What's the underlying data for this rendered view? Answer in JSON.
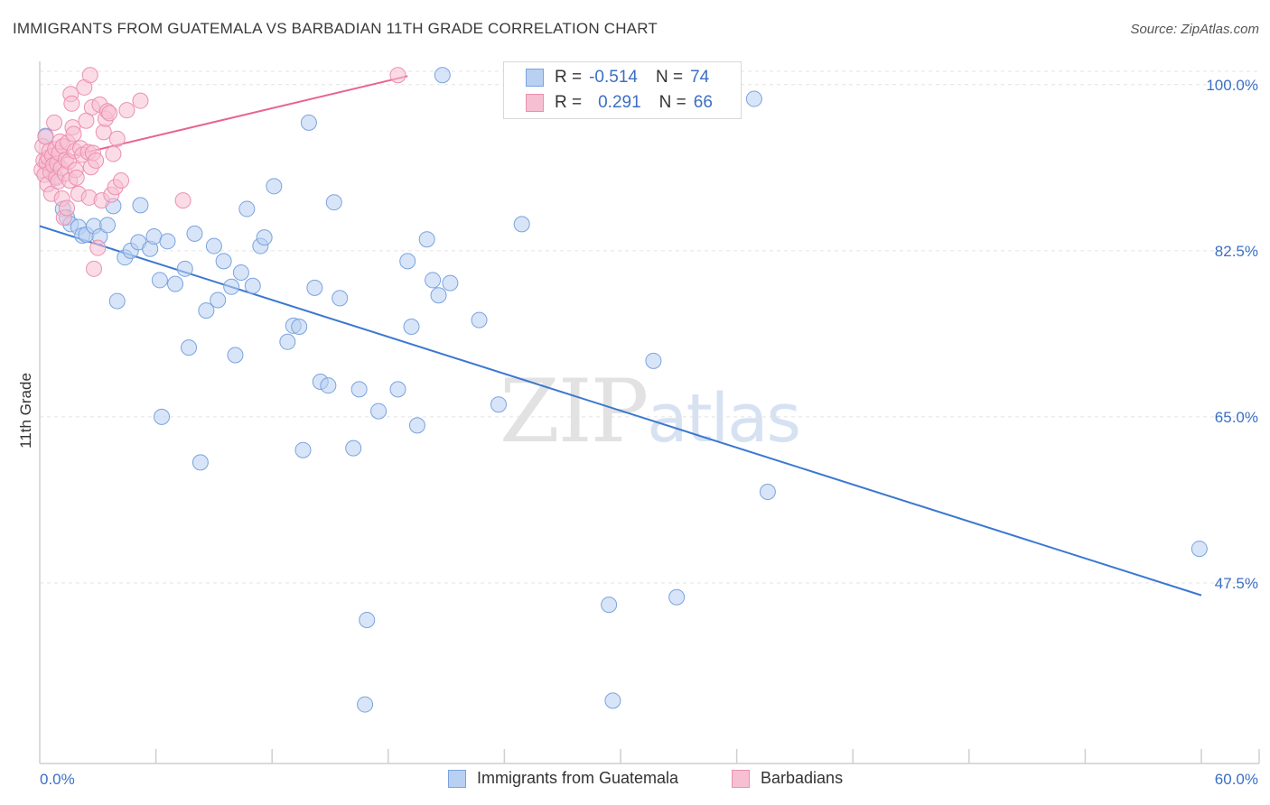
{
  "title": "IMMIGRANTS FROM GUATEMALA VS BARBADIAN 11TH GRADE CORRELATION CHART",
  "source": "Source: ZipAtlas.com",
  "watermark": {
    "zip": "ZIP",
    "atlas": "atlas"
  },
  "legend": {
    "series1": {
      "r_label": "R =",
      "r_value": "-0.514",
      "n_label": "N =",
      "n_value": "74"
    },
    "series2": {
      "r_label": "R =",
      "r_value": "0.291",
      "n_label": "N =",
      "n_value": "66"
    }
  },
  "colors": {
    "blue": "#3c78d0",
    "blue_fill": "#b8d0f2",
    "pink": "#e8638f",
    "pink_fill": "#f7bfd2",
    "axis_text": "#3b6fc4"
  },
  "chart_data": {
    "type": "scatter",
    "title": "IMMIGRANTS FROM GUATEMALA VS BARBADIAN 11TH GRADE CORRELATION CHART",
    "xlabel": "",
    "ylabel": "11th Grade",
    "xlim": [
      0,
      60
    ],
    "ylim": [
      30,
      101.5
    ],
    "x_tick_labels": [
      "0.0%",
      "60.0%"
    ],
    "y_ticks": [
      47.5,
      65.0,
      82.5,
      100.0
    ],
    "y_tick_labels": [
      "47.5%",
      "65.0%",
      "82.5%",
      "100.0%"
    ],
    "x_minor_ticks": [
      6,
      12,
      18,
      24,
      30,
      36,
      42,
      48,
      54,
      60
    ],
    "series": [
      {
        "name": "Immigrants from Guatemala",
        "r": -0.514,
        "n": 74,
        "trend": {
          "x": [
            0,
            60
          ],
          "y": [
            85.1,
            46.2
          ]
        },
        "points": [
          [
            0.3,
            94.6
          ],
          [
            0.5,
            91.5
          ],
          [
            0.8,
            90.3
          ],
          [
            1.2,
            86.9
          ],
          [
            1.4,
            86.0
          ],
          [
            1.6,
            85.3
          ],
          [
            2.0,
            85.0
          ],
          [
            2.2,
            84.1
          ],
          [
            2.4,
            84.2
          ],
          [
            2.8,
            85.1
          ],
          [
            3.1,
            84.0
          ],
          [
            3.5,
            85.2
          ],
          [
            3.8,
            87.2
          ],
          [
            4.0,
            77.2
          ],
          [
            4.4,
            81.8
          ],
          [
            4.7,
            82.5
          ],
          [
            5.1,
            83.4
          ],
          [
            5.2,
            87.3
          ],
          [
            5.7,
            82.7
          ],
          [
            5.9,
            84.0
          ],
          [
            6.2,
            79.4
          ],
          [
            6.3,
            65.0
          ],
          [
            6.6,
            83.5
          ],
          [
            7.0,
            79.0
          ],
          [
            7.5,
            80.6
          ],
          [
            7.7,
            72.3
          ],
          [
            8.0,
            84.3
          ],
          [
            8.3,
            60.2
          ],
          [
            8.6,
            76.2
          ],
          [
            9.0,
            83.0
          ],
          [
            9.2,
            77.3
          ],
          [
            9.5,
            81.4
          ],
          [
            9.9,
            78.7
          ],
          [
            10.1,
            71.5
          ],
          [
            10.4,
            80.2
          ],
          [
            10.7,
            86.9
          ],
          [
            11.0,
            78.8
          ],
          [
            11.4,
            83.0
          ],
          [
            11.6,
            83.9
          ],
          [
            12.1,
            89.3
          ],
          [
            12.8,
            72.9
          ],
          [
            13.1,
            74.6
          ],
          [
            13.4,
            74.5
          ],
          [
            13.6,
            61.5
          ],
          [
            13.9,
            96.0
          ],
          [
            14.2,
            78.6
          ],
          [
            14.5,
            68.7
          ],
          [
            14.9,
            68.3
          ],
          [
            15.2,
            87.6
          ],
          [
            15.5,
            77.5
          ],
          [
            16.2,
            61.7
          ],
          [
            16.5,
            67.9
          ],
          [
            16.8,
            34.7
          ],
          [
            16.9,
            43.6
          ],
          [
            17.5,
            65.6
          ],
          [
            18.5,
            67.9
          ],
          [
            19.0,
            81.4
          ],
          [
            19.2,
            74.5
          ],
          [
            19.5,
            64.1
          ],
          [
            20.0,
            83.7
          ],
          [
            20.3,
            79.4
          ],
          [
            20.6,
            77.8
          ],
          [
            20.8,
            101.0
          ],
          [
            21.2,
            79.1
          ],
          [
            22.7,
            75.2
          ],
          [
            23.7,
            66.3
          ],
          [
            24.9,
            85.3
          ],
          [
            29.4,
            45.2
          ],
          [
            29.6,
            35.1
          ],
          [
            31.7,
            70.9
          ],
          [
            32.9,
            46.0
          ],
          [
            36.9,
            98.5
          ],
          [
            37.6,
            57.1
          ],
          [
            59.9,
            51.1
          ]
        ]
      },
      {
        "name": "Barbadians",
        "r": 0.291,
        "n": 66,
        "trend": {
          "x": [
            0,
            19
          ],
          "y": [
            91.7,
            100.9
          ]
        },
        "points": [
          [
            0.1,
            91.0
          ],
          [
            0.15,
            93.5
          ],
          [
            0.2,
            92.0
          ],
          [
            0.25,
            90.5
          ],
          [
            0.3,
            94.5
          ],
          [
            0.35,
            91.8
          ],
          [
            0.4,
            89.5
          ],
          [
            0.45,
            92.3
          ],
          [
            0.5,
            93.0
          ],
          [
            0.55,
            90.8
          ],
          [
            0.6,
            88.5
          ],
          [
            0.65,
            92.5
          ],
          [
            0.7,
            91.5
          ],
          [
            0.75,
            96.0
          ],
          [
            0.8,
            93.2
          ],
          [
            0.85,
            90.2
          ],
          [
            0.9,
            91.7
          ],
          [
            0.95,
            89.8
          ],
          [
            1.0,
            92.8
          ],
          [
            1.05,
            94.0
          ],
          [
            1.1,
            91.2
          ],
          [
            1.15,
            88.0
          ],
          [
            1.2,
            93.5
          ],
          [
            1.25,
            86.0
          ],
          [
            1.3,
            90.6
          ],
          [
            1.35,
            92.1
          ],
          [
            1.4,
            87.0
          ],
          [
            1.45,
            93.9
          ],
          [
            1.5,
            91.9
          ],
          [
            1.55,
            89.9
          ],
          [
            1.6,
            99.0
          ],
          [
            1.65,
            98.0
          ],
          [
            1.7,
            95.5
          ],
          [
            1.75,
            94.8
          ],
          [
            1.8,
            93.0
          ],
          [
            1.85,
            91.0
          ],
          [
            1.9,
            90.2
          ],
          [
            2.0,
            88.5
          ],
          [
            2.1,
            93.3
          ],
          [
            2.2,
            92.6
          ],
          [
            2.3,
            99.7
          ],
          [
            2.4,
            96.2
          ],
          [
            2.5,
            92.9
          ],
          [
            2.55,
            88.1
          ],
          [
            2.6,
            101.0
          ],
          [
            2.65,
            91.3
          ],
          [
            2.7,
            97.6
          ],
          [
            2.75,
            92.8
          ],
          [
            2.8,
            80.6
          ],
          [
            2.9,
            92.0
          ],
          [
            3.0,
            82.8
          ],
          [
            3.1,
            97.9
          ],
          [
            3.2,
            87.8
          ],
          [
            3.3,
            95.0
          ],
          [
            3.4,
            96.4
          ],
          [
            3.5,
            97.2
          ],
          [
            3.6,
            97.0
          ],
          [
            3.7,
            88.4
          ],
          [
            3.8,
            92.7
          ],
          [
            3.9,
            89.2
          ],
          [
            4.0,
            94.3
          ],
          [
            4.2,
            89.9
          ],
          [
            4.5,
            97.3
          ],
          [
            5.2,
            98.3
          ],
          [
            7.4,
            87.8
          ],
          [
            18.5,
            101.0
          ]
        ]
      }
    ]
  },
  "bottom_legend": [
    "Immigrants from Guatemala",
    "Barbadians"
  ]
}
